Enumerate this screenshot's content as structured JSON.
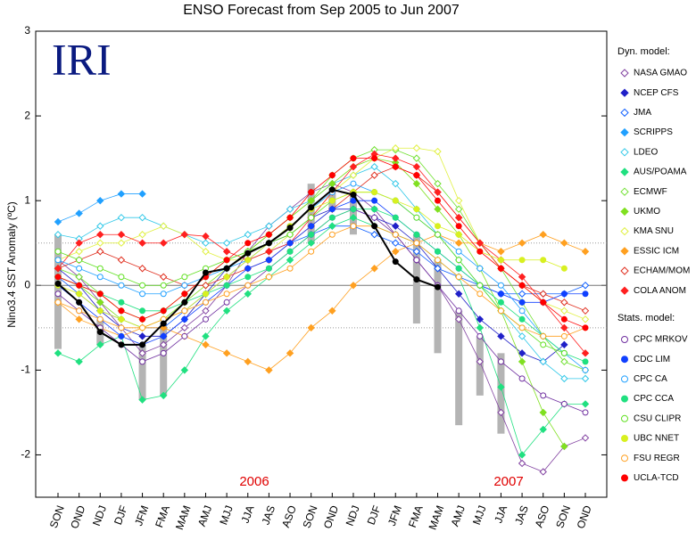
{
  "chart_data": {
    "type": "line",
    "title": "ENSO Forecast from Sep 2005 to Jun 2007",
    "y_label": "Nino3.4 SST Anomaly (ºC)",
    "annotations": [
      "IRI",
      "2006",
      "2007"
    ],
    "legend_titles": [
      "Dyn. model:",
      "Stats. model:"
    ],
    "categories": [
      "SON",
      "OND",
      "NDJ",
      "DJF",
      "JFM",
      "FMA",
      "MAM",
      "AMJ",
      "MJJ",
      "JJA",
      "JAS",
      "ASO",
      "SON",
      "OND",
      "NDJ",
      "DJF",
      "JFM",
      "FMA",
      "MAM",
      "AMJ",
      "MJJ",
      "JJA",
      "JAS",
      "ASO",
      "SON",
      "OND"
    ],
    "ylim": [
      -2.5,
      3
    ],
    "yticks": [
      -2,
      -1,
      0,
      1,
      2,
      3
    ],
    "reference_lines": [
      -0.5,
      0.5
    ],
    "observed": {
      "color": "#000000",
      "values": [
        0.02,
        -0.2,
        -0.55,
        -0.7,
        -0.7,
        -0.45,
        -0.2,
        0.15,
        0.2,
        0.38,
        0.5,
        0.68,
        0.92,
        1.13,
        1.07,
        0.7,
        0.28,
        0.07,
        -0.02,
        null,
        null,
        null,
        null,
        null,
        null,
        null
      ]
    },
    "range": {
      "color": "#b4b4b4",
      "low": [
        -0.75,
        null,
        -0.7,
        null,
        -1.35,
        -1.3,
        null,
        null,
        null,
        null,
        null,
        null,
        0.5,
        0.9,
        0.6,
        null,
        null,
        -0.45,
        -0.8,
        -1.65,
        -1.3,
        -1.75,
        null,
        null,
        null,
        null
      ],
      "high": [
        0.6,
        null,
        -0.4,
        null,
        -0.7,
        -0.45,
        null,
        null,
        null,
        null,
        null,
        null,
        1.2,
        1.15,
        1.1,
        null,
        null,
        0.6,
        0.3,
        -0.3,
        -0.6,
        -0.8,
        null,
        null,
        null,
        null
      ]
    },
    "series": [
      {
        "name": "NASA GMAO",
        "group": 0,
        "marker": "diamond",
        "filled": false,
        "color": "#8040a0",
        "values": [
          0.3,
          0.1,
          -0.2,
          -0.5,
          -0.8,
          -0.7,
          -0.5,
          -0.3,
          0.0,
          0.4,
          0.7,
          0.9,
          1.1,
          1.2,
          1.1,
          0.9,
          0.6,
          0.3,
          0.0,
          -0.4,
          -0.9,
          -1.5,
          -2.1,
          -2.2,
          -1.9,
          -1.8
        ]
      },
      {
        "name": "NCEP CFS",
        "group": 0,
        "marker": "diamond",
        "filled": true,
        "color": "#2020c8",
        "values": [
          0.2,
          0.0,
          -0.3,
          -0.5,
          -0.6,
          -0.6,
          -0.4,
          -0.1,
          0.2,
          0.4,
          0.5,
          0.6,
          0.8,
          0.9,
          0.9,
          0.8,
          0.7,
          0.5,
          0.2,
          -0.1,
          -0.4,
          -0.6,
          -0.8,
          -0.9,
          -0.7,
          null
        ]
      },
      {
        "name": "JMA",
        "group": 0,
        "marker": "diamond",
        "filled": false,
        "color": "#1060ff",
        "values": [
          0.1,
          -0.1,
          -0.3,
          -0.4,
          -0.5,
          -0.5,
          -0.3,
          -0.1,
          0.1,
          0.3,
          0.4,
          0.5,
          0.6,
          0.7,
          0.7,
          0.6,
          0.5,
          0.4,
          0.2,
          0.1,
          0.0,
          -0.1,
          -0.1,
          -0.1,
          -0.1,
          0.0
        ]
      },
      {
        "name": "SCRIPPS",
        "group": 0,
        "marker": "diamond",
        "filled": true,
        "color": "#20a0ff",
        "values": [
          0.75,
          0.85,
          1.0,
          1.08,
          1.08,
          null,
          null,
          null,
          null,
          null,
          null,
          null,
          null,
          null,
          null,
          null,
          null,
          null,
          null,
          null,
          null,
          null,
          null,
          null,
          null,
          null
        ]
      },
      {
        "name": "LDEO",
        "group": 0,
        "marker": "diamond",
        "filled": false,
        "color": "#30c8e8",
        "values": [
          0.6,
          0.55,
          0.7,
          0.8,
          0.8,
          0.7,
          0.6,
          0.5,
          0.5,
          0.6,
          0.7,
          0.9,
          1.0,
          1.2,
          1.3,
          1.4,
          1.2,
          0.9,
          0.6,
          0.3,
          0.0,
          -0.3,
          -0.6,
          -0.9,
          -1.1,
          -1.1
        ]
      },
      {
        "name": "AUS/POAMA",
        "group": 0,
        "marker": "diamond",
        "filled": true,
        "color": "#20e080",
        "values": [
          -0.8,
          -0.9,
          -0.7,
          -0.6,
          -1.35,
          -1.3,
          -1.0,
          -0.6,
          -0.3,
          -0.1,
          0.1,
          0.3,
          0.5,
          0.7,
          0.8,
          0.7,
          0.6,
          0.5,
          0.3,
          0.1,
          -0.5,
          -1.2,
          -2.0,
          -1.7,
          -1.4,
          -1.4
        ]
      },
      {
        "name": "ECMWF",
        "group": 0,
        "marker": "diamond",
        "filled": false,
        "color": "#70e030",
        "values": [
          0.2,
          0.1,
          -0.1,
          -0.3,
          -0.4,
          -0.3,
          -0.1,
          0.1,
          0.3,
          0.4,
          0.6,
          0.8,
          1.0,
          1.3,
          1.5,
          1.6,
          1.6,
          1.5,
          1.2,
          0.9,
          0.5,
          0.2,
          -0.2,
          -0.6,
          -0.9,
          -1.0
        ]
      },
      {
        "name": "UKMO",
        "group": 0,
        "marker": "diamond",
        "filled": true,
        "color": "#80e020",
        "values": [
          0.1,
          0.0,
          -0.2,
          -0.4,
          -0.5,
          -0.4,
          -0.2,
          0.0,
          0.2,
          0.4,
          0.6,
          0.8,
          1.0,
          1.2,
          1.4,
          1.5,
          1.45,
          1.2,
          0.9,
          0.6,
          0.2,
          -0.3,
          -0.9,
          -1.5,
          -1.9,
          null
        ]
      },
      {
        "name": "KMA SNU",
        "group": 0,
        "marker": "diamond",
        "filled": false,
        "color": "#e0f040",
        "values": [
          0.3,
          0.4,
          0.5,
          0.5,
          0.6,
          0.7,
          0.6,
          0.4,
          0.3,
          0.3,
          0.4,
          0.6,
          0.8,
          1.1,
          1.3,
          1.5,
          1.62,
          1.62,
          1.58,
          1.0,
          0.5,
          0.2,
          0.0,
          -0.2,
          -0.3,
          -0.4
        ]
      },
      {
        "name": "ESSIC ICM",
        "group": 0,
        "marker": "diamond",
        "filled": true,
        "color": "#ffa020",
        "values": [
          -0.2,
          -0.4,
          -0.5,
          -0.6,
          -0.5,
          -0.5,
          -0.6,
          -0.7,
          -0.8,
          -0.9,
          -1.0,
          -0.8,
          -0.5,
          -0.3,
          0.0,
          0.2,
          0.4,
          0.5,
          0.6,
          0.5,
          0.5,
          0.4,
          0.5,
          0.6,
          0.5,
          0.4
        ]
      },
      {
        "name": "ECHAM/MOM",
        "group": 0,
        "marker": "diamond",
        "filled": false,
        "color": "#e03020",
        "values": [
          0.2,
          0.3,
          0.4,
          0.3,
          0.2,
          0.1,
          0.0,
          0.0,
          0.1,
          0.2,
          0.3,
          0.5,
          0.7,
          0.9,
          1.1,
          1.3,
          1.4,
          1.3,
          1.1,
          0.8,
          0.5,
          0.2,
          0.0,
          -0.1,
          -0.2,
          -0.3
        ]
      },
      {
        "name": "COLA ANOM",
        "group": 0,
        "marker": "diamond",
        "filled": true,
        "color": "#ff2020",
        "values": [
          0.2,
          0.5,
          0.6,
          0.6,
          0.5,
          0.5,
          0.6,
          0.58,
          0.4,
          0.3,
          0.4,
          0.5,
          0.8,
          1.1,
          1.4,
          1.55,
          1.5,
          1.4,
          1.1,
          0.8,
          0.5,
          0.3,
          0.1,
          -0.2,
          -0.5,
          -0.8
        ]
      },
      {
        "name": "CPC MRKOV",
        "group": 1,
        "marker": "circle",
        "filled": false,
        "color": "#7030a0",
        "values": [
          -0.1,
          -0.3,
          -0.5,
          -0.7,
          -0.9,
          -0.8,
          -0.6,
          -0.4,
          -0.2,
          0.0,
          0.2,
          0.4,
          0.6,
          0.8,
          0.9,
          0.8,
          0.6,
          0.3,
          0.0,
          -0.3,
          -0.6,
          -0.9,
          -1.1,
          -1.3,
          -1.4,
          -1.5
        ]
      },
      {
        "name": "CDC LIM",
        "group": 1,
        "marker": "circle",
        "filled": true,
        "color": "#1040ff",
        "values": [
          0.0,
          -0.2,
          -0.4,
          -0.6,
          -0.7,
          -0.6,
          -0.4,
          -0.2,
          0.0,
          0.2,
          0.3,
          0.5,
          0.7,
          0.9,
          1.0,
          1.0,
          0.8,
          0.6,
          0.4,
          0.2,
          0.0,
          -0.1,
          -0.2,
          -0.2,
          -0.1,
          -0.1
        ]
      },
      {
        "name": "CPC CA",
        "group": 1,
        "marker": "circle",
        "filled": false,
        "color": "#20a0ff",
        "values": [
          0.3,
          0.2,
          0.1,
          0.0,
          -0.1,
          -0.1,
          0.0,
          0.1,
          0.2,
          0.3,
          0.5,
          0.7,
          0.9,
          1.1,
          1.2,
          1.1,
          1.0,
          0.8,
          0.6,
          0.4,
          0.2,
          0.0,
          -0.3,
          -0.6,
          -0.8,
          -1.0
        ]
      },
      {
        "name": "CPC CCA",
        "group": 1,
        "marker": "circle",
        "filled": true,
        "color": "#20e080",
        "values": [
          0.1,
          0.0,
          -0.1,
          -0.2,
          -0.3,
          -0.3,
          -0.2,
          -0.1,
          0.0,
          0.1,
          0.2,
          0.4,
          0.6,
          0.8,
          0.9,
          0.9,
          0.8,
          0.6,
          0.4,
          0.2,
          0.0,
          -0.2,
          -0.4,
          -0.6,
          -0.8,
          -0.9
        ]
      },
      {
        "name": "CSU CLIPR",
        "group": 1,
        "marker": "circle",
        "filled": false,
        "color": "#60e020",
        "values": [
          0.4,
          0.3,
          0.2,
          0.1,
          0.0,
          0.0,
          0.1,
          0.2,
          0.3,
          0.4,
          0.5,
          0.6,
          0.8,
          1.0,
          1.1,
          1.1,
          1.0,
          0.8,
          0.6,
          0.3,
          0.0,
          -0.3,
          -0.5,
          -0.7,
          -0.8,
          null
        ]
      },
      {
        "name": "UBC NNET",
        "group": 1,
        "marker": "circle",
        "filled": true,
        "color": "#d8f020",
        "values": [
          0.0,
          -0.1,
          -0.3,
          -0.4,
          -0.5,
          -0.4,
          -0.3,
          -0.1,
          0.1,
          0.3,
          0.5,
          0.7,
          0.9,
          1.0,
          1.1,
          1.1,
          1.0,
          0.9,
          0.7,
          0.6,
          0.4,
          0.3,
          0.3,
          0.3,
          0.2,
          null
        ]
      },
      {
        "name": "FSU REGR",
        "group": 1,
        "marker": "circle",
        "filled": false,
        "color": "#ffa020",
        "values": [
          -0.2,
          -0.3,
          -0.4,
          -0.5,
          -0.5,
          -0.4,
          -0.3,
          -0.2,
          -0.1,
          0.0,
          0.1,
          0.2,
          0.4,
          0.6,
          0.7,
          0.7,
          0.6,
          0.5,
          0.3,
          0.1,
          -0.1,
          -0.3,
          -0.5,
          -0.6,
          -0.6,
          -0.5
        ]
      },
      {
        "name": "UCLA-TCD",
        "group": 1,
        "marker": "circle",
        "filled": true,
        "color": "#ff0000",
        "values": [
          0.1,
          0.0,
          -0.1,
          -0.3,
          -0.4,
          -0.3,
          -0.1,
          0.1,
          0.3,
          0.5,
          0.6,
          0.8,
          1.1,
          1.3,
          1.5,
          1.5,
          1.4,
          1.3,
          1.0,
          0.7,
          0.4,
          0.2,
          0.0,
          -0.2,
          -0.4,
          -0.5
        ]
      }
    ]
  }
}
